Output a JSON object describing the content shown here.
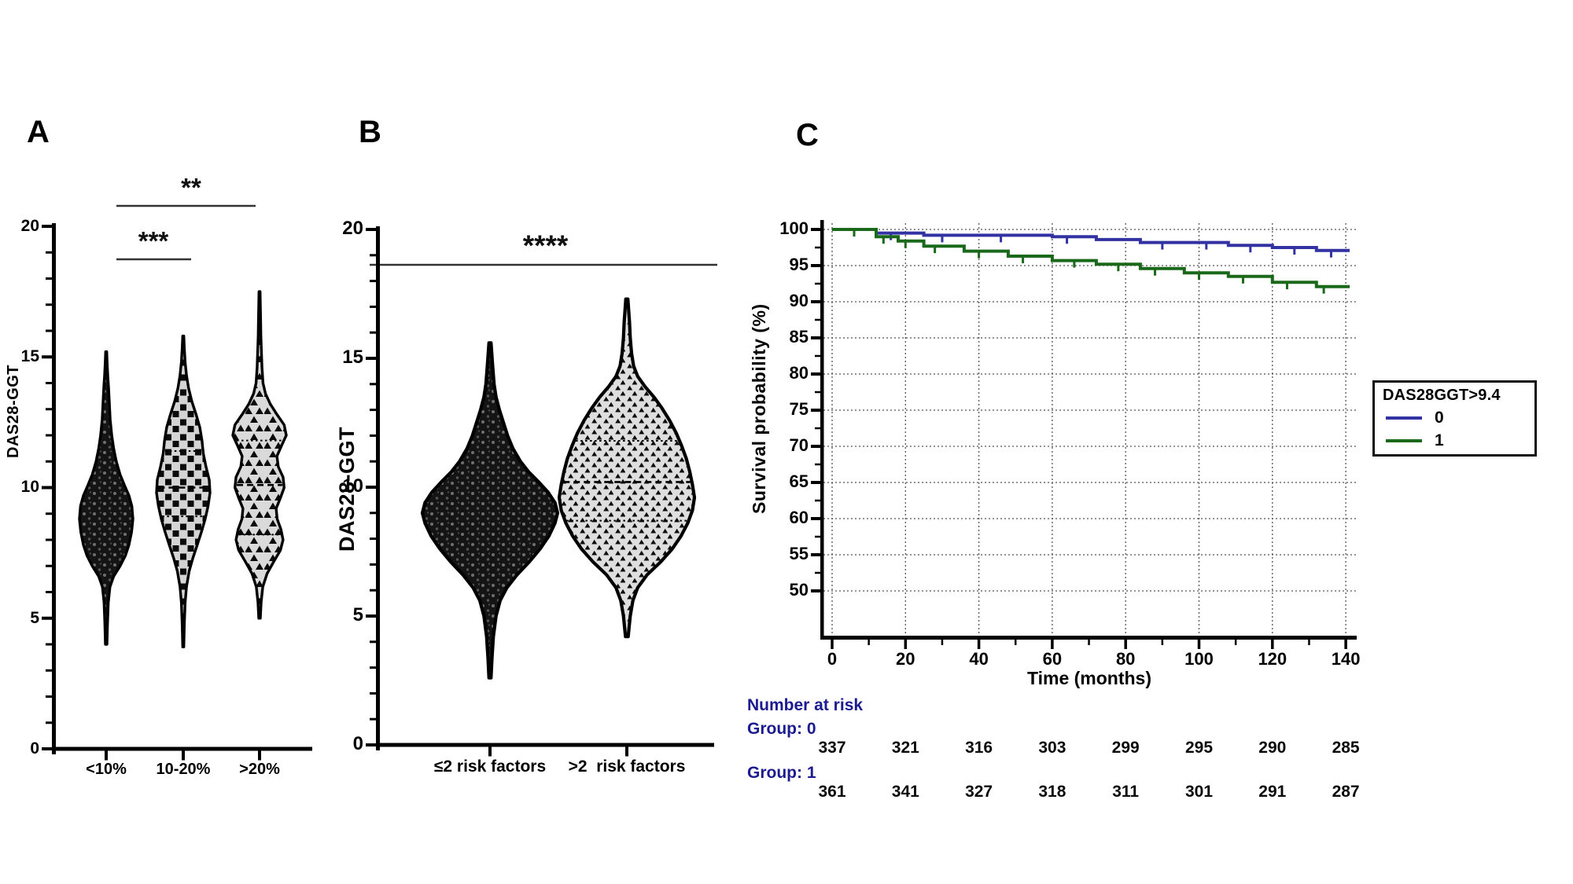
{
  "panel_a": {
    "label": "A"
  },
  "panel_b": {
    "label": "B"
  },
  "panel_c": {
    "label": "C"
  },
  "chart_data": [
    {
      "type": "violin",
      "panel": "A",
      "ylabel": "DAS28-GGT",
      "ylim": [
        0,
        20
      ],
      "yticks": [
        0,
        5,
        10,
        15,
        20
      ],
      "categories": [
        "<10%",
        "10-20%",
        ">20%"
      ],
      "significance": [
        {
          "stars": "***",
          "between": [
            "<10%",
            "10-20%"
          ]
        },
        {
          "stars": "**",
          "between": [
            "<10%",
            ">20%"
          ]
        }
      ],
      "groups": [
        {
          "name": "<10%",
          "marker": "circle",
          "fill": "dark-speckled",
          "min": 4.0,
          "q1": 8.0,
          "median": 8.9,
          "q3": 9.9,
          "max": 15.2,
          "show_stat_lines": false,
          "profile": [
            [
              4.0,
              0.03
            ],
            [
              4.8,
              0.05
            ],
            [
              5.6,
              0.08
            ],
            [
              6.2,
              0.14
            ],
            [
              6.6,
              0.28
            ],
            [
              7.0,
              0.52
            ],
            [
              7.4,
              0.72
            ],
            [
              7.8,
              0.85
            ],
            [
              8.3,
              0.95
            ],
            [
              8.8,
              1.0
            ],
            [
              9.3,
              0.96
            ],
            [
              9.7,
              0.85
            ],
            [
              10.1,
              0.68
            ],
            [
              10.5,
              0.52
            ],
            [
              11.0,
              0.38
            ],
            [
              11.5,
              0.28
            ],
            [
              12.0,
              0.21
            ],
            [
              12.6,
              0.15
            ],
            [
              13.2,
              0.12
            ],
            [
              13.8,
              0.09
            ],
            [
              14.3,
              0.06
            ],
            [
              14.8,
              0.035
            ],
            [
              15.2,
              0.02
            ]
          ]
        },
        {
          "name": "10-20%",
          "marker": "square",
          "fill": "light-squares",
          "min": 3.9,
          "q1": 8.9,
          "median": 10.0,
          "q3": 11.4,
          "max": 15.8,
          "show_stat_lines": true,
          "profile": [
            [
              3.9,
              0.02
            ],
            [
              4.8,
              0.04
            ],
            [
              5.6,
              0.07
            ],
            [
              6.2,
              0.12
            ],
            [
              6.8,
              0.22
            ],
            [
              7.3,
              0.36
            ],
            [
              7.8,
              0.52
            ],
            [
              8.3,
              0.68
            ],
            [
              8.8,
              0.82
            ],
            [
              9.3,
              0.93
            ],
            [
              9.8,
              1.0
            ],
            [
              10.3,
              0.97
            ],
            [
              10.8,
              0.85
            ],
            [
              11.3,
              0.75
            ],
            [
              11.8,
              0.7
            ],
            [
              12.3,
              0.62
            ],
            [
              12.8,
              0.48
            ],
            [
              13.3,
              0.32
            ],
            [
              13.8,
              0.2
            ],
            [
              14.3,
              0.12
            ],
            [
              14.8,
              0.07
            ],
            [
              15.3,
              0.04
            ],
            [
              15.8,
              0.02
            ]
          ]
        },
        {
          "name": ">20%",
          "marker": "triangle",
          "fill": "light-triangles",
          "min": 5.0,
          "q1": 8.2,
          "median": 10.1,
          "q3": 11.8,
          "max": 17.5,
          "show_stat_lines": true,
          "profile": [
            [
              5.0,
              0.03
            ],
            [
              5.6,
              0.06
            ],
            [
              6.2,
              0.12
            ],
            [
              6.7,
              0.28
            ],
            [
              7.2,
              0.55
            ],
            [
              7.6,
              0.78
            ],
            [
              8.0,
              0.88
            ],
            [
              8.4,
              0.8
            ],
            [
              8.8,
              0.66
            ],
            [
              9.2,
              0.62
            ],
            [
              9.6,
              0.78
            ],
            [
              10.0,
              0.92
            ],
            [
              10.4,
              0.88
            ],
            [
              10.8,
              0.7
            ],
            [
              11.2,
              0.65
            ],
            [
              11.6,
              0.82
            ],
            [
              12.0,
              1.0
            ],
            [
              12.4,
              0.92
            ],
            [
              12.8,
              0.65
            ],
            [
              13.2,
              0.4
            ],
            [
              13.6,
              0.22
            ],
            [
              14.0,
              0.13
            ],
            [
              14.6,
              0.09
            ],
            [
              15.2,
              0.07
            ],
            [
              15.8,
              0.05
            ],
            [
              16.4,
              0.04
            ],
            [
              17.0,
              0.03
            ],
            [
              17.5,
              0.02
            ]
          ]
        }
      ]
    },
    {
      "type": "violin",
      "panel": "B",
      "ylabel": "DAS28-GGT",
      "ylim": [
        0,
        20
      ],
      "yticks": [
        0,
        5,
        10,
        15,
        20
      ],
      "categories": [
        "≤2 risk factors",
        ">2  risk factors"
      ],
      "significance": [
        {
          "stars": "****",
          "between": [
            "≤2 risk factors",
            ">2  risk factors"
          ]
        }
      ],
      "groups": [
        {
          "name": "≤2 risk factors",
          "marker": "circle",
          "fill": "dark-speckled",
          "min": 2.6,
          "q1": 8.2,
          "median": 9.2,
          "q3": 10.3,
          "max": 15.6,
          "show_stat_lines": false,
          "profile": [
            [
              2.6,
              0.015
            ],
            [
              3.4,
              0.03
            ],
            [
              4.2,
              0.05
            ],
            [
              5.0,
              0.09
            ],
            [
              5.6,
              0.15
            ],
            [
              6.1,
              0.25
            ],
            [
              6.6,
              0.4
            ],
            [
              7.1,
              0.58
            ],
            [
              7.6,
              0.74
            ],
            [
              8.1,
              0.87
            ],
            [
              8.6,
              0.96
            ],
            [
              9.0,
              1.0
            ],
            [
              9.4,
              0.96
            ],
            [
              9.8,
              0.86
            ],
            [
              10.2,
              0.72
            ],
            [
              10.6,
              0.57
            ],
            [
              11.0,
              0.45
            ],
            [
              11.5,
              0.34
            ],
            [
              12.0,
              0.26
            ],
            [
              12.5,
              0.2
            ],
            [
              13.0,
              0.14
            ],
            [
              13.5,
              0.09
            ],
            [
              14.0,
              0.06
            ],
            [
              14.7,
              0.04
            ],
            [
              15.6,
              0.015
            ]
          ]
        },
        {
          "name": ">2  risk factors",
          "marker": "triangle",
          "fill": "light-triangles",
          "min": 4.2,
          "q1": 8.7,
          "median": 10.2,
          "q3": 11.8,
          "max": 17.3,
          "show_stat_lines": true,
          "profile": [
            [
              4.2,
              0.02
            ],
            [
              5.0,
              0.05
            ],
            [
              5.6,
              0.09
            ],
            [
              6.1,
              0.16
            ],
            [
              6.6,
              0.3
            ],
            [
              7.1,
              0.5
            ],
            [
              7.6,
              0.67
            ],
            [
              8.1,
              0.8
            ],
            [
              8.6,
              0.9
            ],
            [
              9.1,
              0.97
            ],
            [
              9.6,
              1.0
            ],
            [
              10.1,
              0.97
            ],
            [
              10.6,
              0.93
            ],
            [
              11.1,
              0.88
            ],
            [
              11.6,
              0.81
            ],
            [
              12.1,
              0.73
            ],
            [
              12.6,
              0.63
            ],
            [
              13.1,
              0.51
            ],
            [
              13.5,
              0.4
            ],
            [
              13.9,
              0.27
            ],
            [
              14.3,
              0.16
            ],
            [
              14.7,
              0.1
            ],
            [
              15.2,
              0.07
            ],
            [
              15.8,
              0.05
            ],
            [
              16.4,
              0.04
            ],
            [
              17.3,
              0.015
            ]
          ]
        }
      ]
    },
    {
      "type": "line",
      "subtype": "kaplan-meier",
      "panel": "C",
      "ylabel": "Survival probability (%)",
      "xlabel": "Time (months)",
      "ylim": [
        50,
        100
      ],
      "xlim": [
        0,
        140
      ],
      "yticks": [
        100,
        95,
        90,
        85,
        80,
        75,
        70,
        65,
        60,
        55,
        50
      ],
      "xticks": [
        0,
        20,
        40,
        60,
        80,
        100,
        120,
        140
      ],
      "grid": "dotted",
      "legend": {
        "title": "DAS28GGT>9.4",
        "position": "right",
        "items": [
          {
            "label": "0",
            "color": "#3232a3"
          },
          {
            "label": "1",
            "color": "#1a691a"
          }
        ]
      },
      "series": [
        {
          "name": "0",
          "color": "#3232a3",
          "steps": [
            [
              0,
              100
            ],
            [
              12,
              99.5
            ],
            [
              25,
              99.2
            ],
            [
              60,
              99.0
            ],
            [
              72,
              98.6
            ],
            [
              84,
              98.2
            ],
            [
              108,
              97.8
            ],
            [
              120,
              97.5
            ],
            [
              132,
              97.1
            ],
            [
              140,
              97.1
            ]
          ],
          "censor_times": [
            16,
            30,
            46,
            64,
            90,
            102,
            114,
            126,
            136
          ]
        },
        {
          "name": "1",
          "color": "#1a691a",
          "steps": [
            [
              0,
              100
            ],
            [
              12,
              99.0
            ],
            [
              18,
              98.4
            ],
            [
              25,
              97.7
            ],
            [
              36,
              97.0
            ],
            [
              48,
              96.3
            ],
            [
              60,
              95.7
            ],
            [
              72,
              95.2
            ],
            [
              84,
              94.6
            ],
            [
              96,
              94.0
            ],
            [
              108,
              93.5
            ],
            [
              120,
              92.7
            ],
            [
              132,
              92.1
            ],
            [
              140,
              92.1
            ]
          ],
          "censor_times": [
            6,
            14,
            20,
            28,
            40,
            52,
            66,
            78,
            88,
            100,
            112,
            124,
            134
          ]
        }
      ],
      "at_risk": {
        "header": "Number at risk",
        "time_points": [
          0,
          20,
          40,
          60,
          80,
          100,
          120,
          140
        ],
        "groups": [
          {
            "label": "Group: 0",
            "counts": [
              337,
              321,
              316,
              303,
              299,
              295,
              290,
              285
            ]
          },
          {
            "label": "Group: 1",
            "counts": [
              361,
              341,
              327,
              318,
              311,
              301,
              291,
              287
            ]
          }
        ]
      }
    }
  ]
}
